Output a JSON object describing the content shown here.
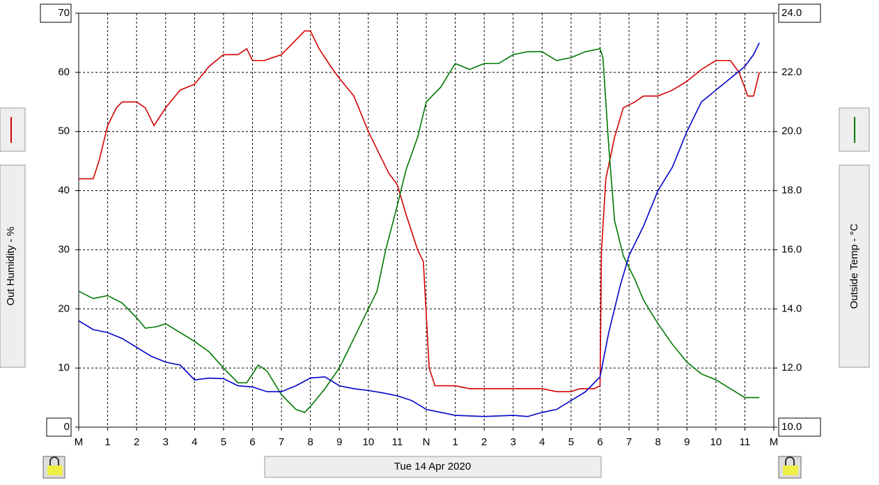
{
  "chart_data": {
    "type": "line",
    "xlabel": "Tue 14 Apr 2020",
    "ylabel": "Out Humidity - %",
    "y2label": "Outside Temp - °C",
    "xlim": [
      0,
      24
    ],
    "ylim": [
      0,
      70
    ],
    "y2lim": [
      10,
      24
    ],
    "xticks": [
      {
        "value": 0,
        "label": "M"
      },
      1,
      2,
      3,
      4,
      5,
      6,
      7,
      8,
      9,
      10,
      11,
      {
        "value": 12,
        "label": "N"
      },
      {
        "value": 13,
        "label": "1"
      },
      {
        "value": 14,
        "label": "2"
      },
      {
        "value": 15,
        "label": "3"
      },
      {
        "value": 16,
        "label": "4"
      },
      {
        "value": 17,
        "label": "5"
      },
      {
        "value": 18,
        "label": "6"
      },
      {
        "value": 19,
        "label": "7"
      },
      {
        "value": 20,
        "label": "8"
      },
      {
        "value": 21,
        "label": "9"
      },
      {
        "value": 22,
        "label": "10"
      },
      {
        "value": 23,
        "label": "11"
      },
      {
        "value": 24,
        "label": "M"
      }
    ],
    "yticks": [
      0,
      10,
      20,
      30,
      40,
      50,
      60,
      70
    ],
    "y2ticks": [
      {
        "value": 10,
        "label": "10.0"
      },
      {
        "value": 12,
        "label": "12.0"
      },
      {
        "value": 14,
        "label": "14.0"
      },
      {
        "value": 16,
        "label": "16.0"
      },
      {
        "value": 18,
        "label": "18.0"
      },
      {
        "value": 20,
        "label": "20.0"
      },
      {
        "value": 22,
        "label": "22.0"
      },
      {
        "value": 24,
        "label": "24.0"
      }
    ],
    "grid": true,
    "series": [
      {
        "color": "#d40000",
        "axis": "y",
        "x": [
          0,
          0.5,
          0.7,
          1,
          1.3,
          1.5,
          2,
          2.3,
          2.6,
          3,
          3.5,
          4,
          4.5,
          5,
          5.5,
          5.8,
          6,
          6.4,
          7,
          7.5,
          7.8,
          8,
          8.3,
          8.7,
          9,
          9.5,
          10,
          10.3,
          10.7,
          11,
          11.3,
          11.7,
          11.9,
          12.1,
          12.3,
          13,
          13.5,
          14,
          15,
          16,
          16.5,
          17,
          17.3,
          17.8,
          18,
          18.05,
          18.2,
          18.5,
          18.8,
          19.2,
          19.5,
          20,
          20.5,
          21,
          21.5,
          22,
          22.5,
          22.8,
          23.1,
          23.3,
          23.5
        ],
        "values": [
          42,
          42,
          45,
          51,
          54,
          55,
          55,
          54,
          51,
          54,
          57,
          58,
          61,
          63,
          63,
          64,
          62,
          62,
          63,
          65.5,
          67,
          67,
          64,
          61,
          59,
          56,
          50,
          47,
          43,
          41,
          36,
          30,
          28,
          10,
          7,
          7,
          6.5,
          6.5,
          6.5,
          6.5,
          6,
          6,
          6.5,
          6.5,
          7,
          30,
          42,
          49,
          54,
          55,
          56,
          56,
          57,
          58.5,
          60.5,
          62,
          62,
          60,
          56,
          56,
          60
        ]
      },
      {
        "color": "#007800",
        "axis": "y2",
        "x": [
          0,
          0.5,
          1,
          1.5,
          2,
          2.3,
          2.7,
          3,
          3.5,
          4,
          4.5,
          5,
          5.5,
          5.8,
          6.2,
          6.5,
          7,
          7.5,
          7.8,
          8,
          8.5,
          9,
          9.5,
          10,
          10.3,
          10.6,
          11,
          11.3,
          11.7,
          12,
          12.5,
          13,
          13.5,
          14,
          14.5,
          15,
          15.5,
          16,
          16.5,
          17,
          17.5,
          18,
          18.1,
          18.3,
          18.5,
          18.8,
          19.2,
          19.5,
          20,
          20.5,
          21,
          21.5,
          22,
          22.5,
          23,
          23.5
        ],
        "values": [
          14.6,
          14.35,
          14.45,
          14.2,
          13.7,
          13.35,
          13.4,
          13.5,
          13.2,
          12.9,
          12.55,
          12,
          11.5,
          11.5,
          12.1,
          11.9,
          11.1,
          10.6,
          10.5,
          10.7,
          11.3,
          12,
          13,
          14,
          14.6,
          16,
          17.5,
          18.7,
          19.8,
          21,
          21.5,
          22.3,
          22.1,
          22.3,
          22.3,
          22.6,
          22.7,
          22.7,
          22.4,
          22.5,
          22.7,
          22.8,
          22.5,
          19.5,
          17,
          15.8,
          15,
          14.3,
          13.5,
          12.8,
          12.2,
          11.8,
          11.6,
          11.3,
          11,
          11
        ]
      },
      {
        "color": "#0000c8",
        "axis": "y",
        "x": [
          0,
          0.5,
          1,
          1.5,
          2,
          2.5,
          3,
          3.5,
          4,
          4.5,
          5,
          5.5,
          6,
          6.5,
          7,
          7.5,
          8,
          8.5,
          9,
          9.5,
          10,
          10.5,
          11,
          11.5,
          12,
          12.5,
          13,
          14,
          15,
          15.5,
          16,
          16.5,
          17,
          17.5,
          18,
          18.3,
          18.7,
          19,
          19.5,
          20,
          20.5,
          21,
          21.5,
          22,
          22.5,
          23,
          23.3,
          23.5
        ],
        "values": [
          18,
          16.5,
          16,
          15,
          13.5,
          12,
          11,
          10.5,
          8,
          8.3,
          8.2,
          7,
          6.8,
          6,
          6,
          7,
          8.3,
          8.5,
          7,
          6.5,
          6.2,
          5.8,
          5.3,
          4.5,
          3,
          2.5,
          2,
          1.8,
          2,
          1.8,
          2.5,
          3,
          4.5,
          6,
          8.5,
          16,
          24,
          29,
          34,
          40,
          44,
          50,
          55,
          57,
          59,
          61,
          63,
          65
        ]
      }
    ]
  }
}
